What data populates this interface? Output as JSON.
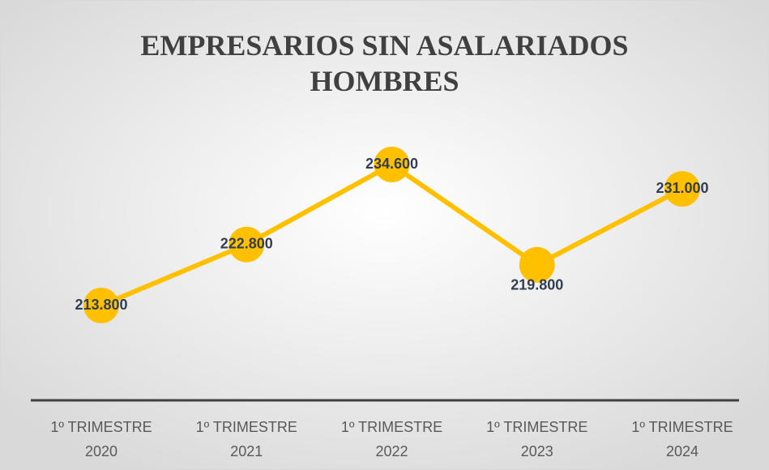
{
  "chart_data": {
    "type": "line",
    "title": "EMPRESARIOS SIN ASALARIADOS HOMBRES",
    "categories": [
      "1º TRIMESTRE 2020",
      "1º TRIMESTRE 2021",
      "1º TRIMESTRE 2022",
      "1º TRIMESTRE 2023",
      "1º TRIMESTRE 2024"
    ],
    "series": [
      {
        "name": "Empresarios sin asalariados hombres",
        "color": "#ffc000",
        "values": [
          213800,
          222800,
          234600,
          219800,
          231000
        ],
        "value_labels": [
          "213.800",
          "222.800",
          "234.600",
          "219.800",
          "231.000"
        ]
      }
    ]
  }
}
